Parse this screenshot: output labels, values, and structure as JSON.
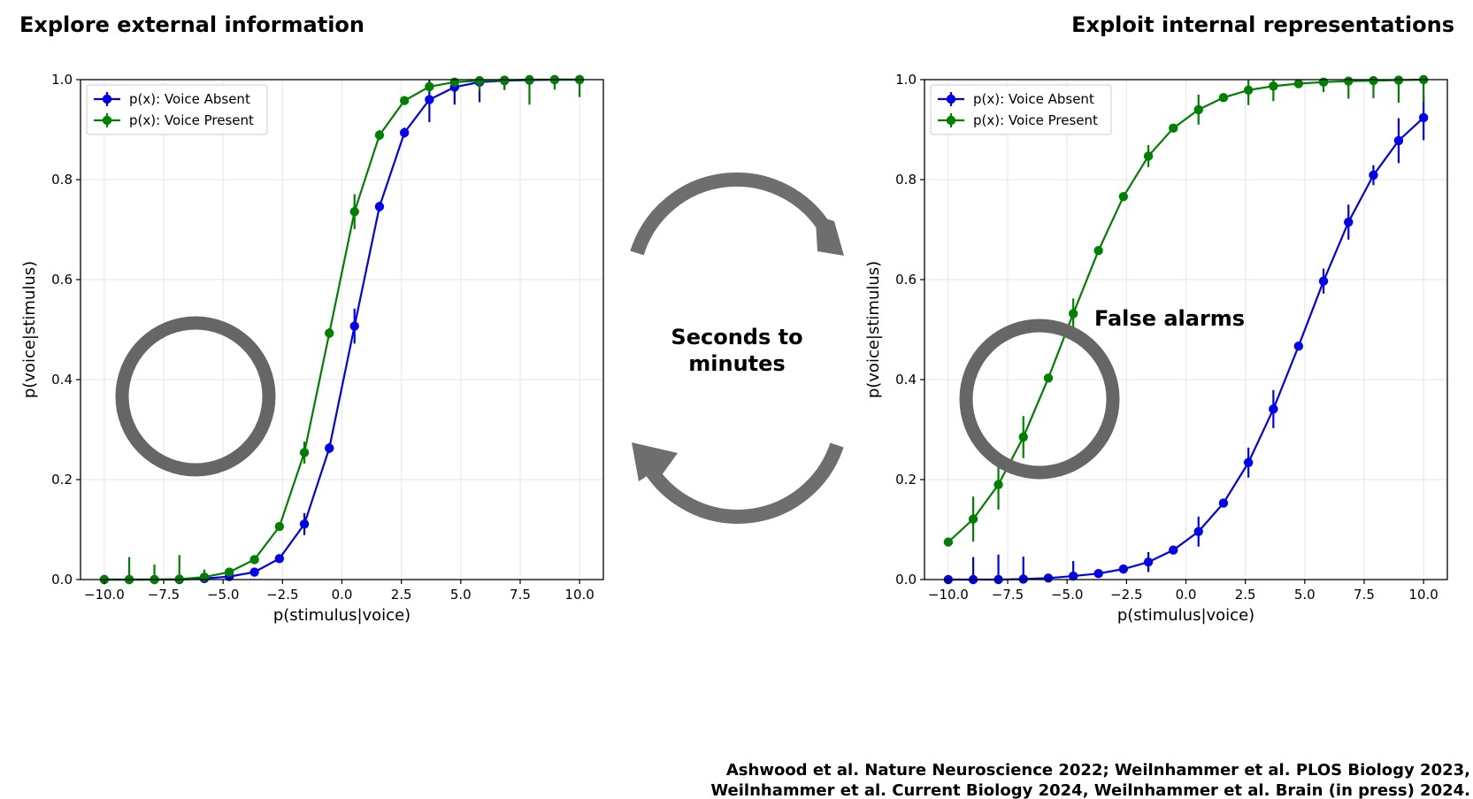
{
  "header": {
    "left_title": "Explore external information",
    "right_title": "Exploit internal representations"
  },
  "center": {
    "line1": "Seconds to",
    "line2": "minutes"
  },
  "annotation": {
    "false_alarms": "False alarms"
  },
  "citation": {
    "line1": "Ashwood et al. Nature Neuroscience 2022; Weilnhammer et al. PLOS Biology 2023,",
    "line2": "Weilnhammer et al. Current Biology 2024, Weilnhammer et al. Brain (in press) 2024."
  },
  "colors": {
    "voice_absent": "#0000ee",
    "voice_present": "#008000",
    "annotation_gray": "#666666"
  },
  "chart_data": [
    {
      "type": "line",
      "title": "Explore external information",
      "xlabel": "p(stimulus|voice)",
      "ylabel": "p(voice|stimulus)",
      "xlim": [
        -11,
        11
      ],
      "ylim": [
        0,
        1
      ],
      "xticks": [
        -10,
        -7.5,
        -5,
        -2.5,
        0,
        2.5,
        5,
        7.5,
        10
      ],
      "xtick_labels": [
        "−10.0",
        "−7.5",
        "−5.0",
        "−2.5",
        "0.0",
        "2.5",
        "5.0",
        "7.5",
        "10.0"
      ],
      "yticks": [
        0,
        0.2,
        0.4,
        0.6,
        0.8,
        1.0
      ],
      "ytick_labels": [
        "0.0",
        "0.2",
        "0.4",
        "0.6",
        "0.8",
        "1.0"
      ],
      "grid": true,
      "legend": "top-left",
      "x": [
        -10,
        -8.95,
        -7.89,
        -6.84,
        -5.79,
        -4.74,
        -3.68,
        -2.63,
        -1.58,
        -0.53,
        0.53,
        1.58,
        2.63,
        3.68,
        4.74,
        5.79,
        6.84,
        7.89,
        8.95,
        10
      ],
      "series": [
        {
          "name": "p(x): Voice Absent",
          "color": "#0000ee",
          "values": [
            0.0,
            0.0,
            0.0,
            0.0,
            0.002,
            0.006,
            0.015,
            0.042,
            0.111,
            0.263,
            0.507,
            0.746,
            0.894,
            0.96,
            0.985,
            0.995,
            0.998,
            0.999,
            1.0,
            1.0
          ],
          "err": [
            0.002,
            0.002,
            0.002,
            0.002,
            0.003,
            0.005,
            0.006,
            0.008,
            0.022,
            0.01,
            0.035,
            0.01,
            0.01,
            0.045,
            0.035,
            0.04,
            0.015,
            0.01,
            0.01,
            0.01
          ]
        },
        {
          "name": "p(x): Voice Present",
          "color": "#008000",
          "values": [
            0.0,
            0.0,
            0.0,
            0.001,
            0.005,
            0.015,
            0.04,
            0.106,
            0.254,
            0.493,
            0.736,
            0.889,
            0.958,
            0.986,
            0.995,
            0.998,
            0.999,
            1.0,
            1.0,
            1.0
          ],
          "err": [
            0.002,
            0.045,
            0.03,
            0.048,
            0.015,
            0.006,
            0.006,
            0.006,
            0.022,
            0.01,
            0.035,
            0.01,
            0.006,
            0.01,
            0.01,
            0.02,
            0.02,
            0.05,
            0.02,
            0.035
          ]
        }
      ]
    },
    {
      "type": "line",
      "title": "Exploit internal representations",
      "xlabel": "p(stimulus|voice)",
      "ylabel": "p(voice|stimulus)",
      "xlim": [
        -11,
        11
      ],
      "ylim": [
        0,
        1
      ],
      "xticks": [
        -10,
        -7.5,
        -5,
        -2.5,
        0,
        2.5,
        5,
        7.5,
        10
      ],
      "xtick_labels": [
        "−10.0",
        "−7.5",
        "−5.0",
        "−2.5",
        "0.0",
        "2.5",
        "5.0",
        "7.5",
        "10.0"
      ],
      "yticks": [
        0,
        0.2,
        0.4,
        0.6,
        0.8,
        1.0
      ],
      "ytick_labels": [
        "0.0",
        "0.2",
        "0.4",
        "0.6",
        "0.8",
        "1.0"
      ],
      "grid": true,
      "legend": "top-left",
      "x": [
        -10,
        -8.95,
        -7.89,
        -6.84,
        -5.79,
        -4.74,
        -3.68,
        -2.63,
        -1.58,
        -0.53,
        0.53,
        1.58,
        2.63,
        3.68,
        4.74,
        5.79,
        6.84,
        7.89,
        8.95,
        10
      ],
      "series": [
        {
          "name": "p(x): Voice Absent",
          "color": "#0000ee",
          "values": [
            0.0,
            0.0,
            0.0,
            0.001,
            0.003,
            0.007,
            0.012,
            0.021,
            0.035,
            0.059,
            0.096,
            0.153,
            0.234,
            0.341,
            0.467,
            0.597,
            0.715,
            0.809,
            0.878,
            0.924
          ],
          "err": [
            0.002,
            0.045,
            0.05,
            0.045,
            0.005,
            0.03,
            0.005,
            0.005,
            0.02,
            0.005,
            0.03,
            0.005,
            0.03,
            0.038,
            0.005,
            0.025,
            0.035,
            0.02,
            0.045,
            0.045
          ]
        },
        {
          "name": "p(x): Voice Present",
          "color": "#008000",
          "values": [
            0.075,
            0.121,
            0.19,
            0.285,
            0.403,
            0.532,
            0.658,
            0.766,
            0.847,
            0.903,
            0.94,
            0.964,
            0.979,
            0.987,
            0.992,
            0.995,
            0.997,
            0.998,
            0.999,
            1.0
          ],
          "err": [
            0.005,
            0.045,
            0.05,
            0.042,
            0.005,
            0.03,
            0.005,
            0.005,
            0.022,
            0.005,
            0.03,
            0.005,
            0.03,
            0.03,
            0.005,
            0.02,
            0.035,
            0.035,
            0.045,
            0.045
          ]
        }
      ]
    }
  ]
}
